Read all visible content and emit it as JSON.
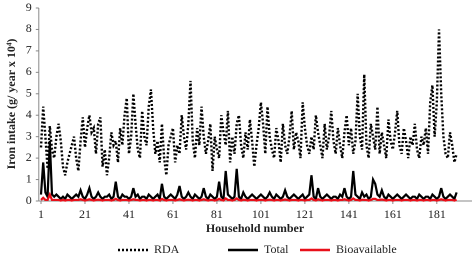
{
  "chart_data": {
    "type": "line",
    "ylabel": "Iron intake (g/ year x 10⁴)",
    "xlabel": "Household number",
    "xlim": [
      0,
      197
    ],
    "ylim": [
      0,
      9
    ],
    "yticks": [
      0,
      1,
      2,
      3,
      4,
      5,
      6,
      7,
      8,
      9
    ],
    "xticks": [
      1,
      21,
      41,
      61,
      81,
      101,
      121,
      141,
      161,
      181
    ],
    "legend": "bottom",
    "x": [
      1,
      2,
      3,
      4,
      5,
      6,
      7,
      8,
      9,
      10,
      11,
      12,
      13,
      14,
      15,
      16,
      17,
      18,
      19,
      20,
      21,
      22,
      23,
      24,
      25,
      26,
      27,
      28,
      29,
      30,
      31,
      32,
      33,
      34,
      35,
      36,
      37,
      38,
      39,
      40,
      41,
      42,
      43,
      44,
      45,
      46,
      47,
      48,
      49,
      50,
      51,
      52,
      53,
      54,
      55,
      56,
      57,
      58,
      59,
      60,
      61,
      62,
      63,
      64,
      65,
      66,
      67,
      68,
      69,
      70,
      71,
      72,
      73,
      74,
      75,
      76,
      77,
      78,
      79,
      80,
      81,
      82,
      83,
      84,
      85,
      86,
      87,
      88,
      89,
      90,
      91,
      92,
      93,
      94,
      95,
      96,
      97,
      98,
      99,
      100,
      101,
      102,
      103,
      104,
      105,
      106,
      107,
      108,
      109,
      110,
      111,
      112,
      113,
      114,
      115,
      116,
      117,
      118,
      119,
      120,
      121,
      122,
      123,
      124,
      125,
      126,
      127,
      128,
      129,
      130,
      131,
      132,
      133,
      134,
      135,
      136,
      137,
      138,
      139,
      140,
      141,
      142,
      143,
      144,
      145,
      146,
      147,
      148,
      149,
      150,
      151,
      152,
      153,
      154,
      155,
      156,
      157,
      158,
      159,
      160,
      161,
      162,
      163,
      164,
      165,
      166,
      167,
      168,
      169,
      170,
      171,
      172,
      173,
      174,
      175,
      176,
      177,
      178,
      179,
      180,
      181,
      182,
      183,
      184,
      185,
      186,
      187,
      188,
      189,
      190
    ],
    "series": [
      {
        "name": "RDA",
        "color": "#000000",
        "dash": "dotted",
        "values": [
          2.5,
          4.4,
          3.0,
          1.5,
          3.5,
          2.4,
          2.0,
          3.0,
          3.6,
          2.8,
          1.6,
          1.2,
          1.8,
          2.2,
          2.6,
          3.0,
          2.0,
          1.4,
          2.8,
          3.9,
          2.5,
          3.4,
          4.0,
          3.2,
          3.4,
          2.2,
          3.6,
          3.9,
          1.6,
          2.4,
          1.2,
          2.0,
          3.2,
          2.6,
          2.8,
          1.8,
          3.4,
          2.6,
          4.0,
          4.8,
          2.2,
          3.0,
          5.0,
          3.6,
          2.4,
          2.0,
          4.2,
          3.0,
          2.6,
          4.4,
          5.2,
          3.4,
          2.2,
          2.8,
          1.8,
          3.6,
          2.0,
          1.2,
          2.6,
          3.0,
          3.4,
          1.8,
          2.6,
          2.2,
          4.0,
          3.0,
          2.4,
          3.6,
          5.6,
          2.8,
          2.0,
          3.4,
          2.6,
          4.4,
          3.0,
          2.2,
          2.8,
          3.6,
          1.4,
          3.0,
          2.4,
          2.0,
          4.0,
          3.2,
          2.6,
          4.2,
          1.8,
          3.0,
          2.2,
          3.6,
          4.0,
          2.6,
          2.0,
          3.2,
          2.4,
          3.8,
          2.8,
          1.6,
          2.6,
          3.4,
          4.6,
          3.6,
          2.2,
          4.4,
          3.0,
          2.4,
          2.0,
          3.4,
          2.8,
          1.8,
          3.6,
          2.6,
          2.2,
          3.0,
          4.2,
          2.4,
          3.2,
          2.8,
          2.0,
          4.6,
          3.4,
          2.6,
          2.2,
          3.0,
          2.4,
          4.0,
          3.2,
          2.6,
          2.0,
          3.6,
          2.4,
          3.0,
          4.2,
          2.8,
          2.2,
          3.4,
          2.6,
          2.0,
          3.2,
          4.0,
          2.6,
          3.4,
          2.2,
          2.8,
          5.0,
          3.0,
          2.4,
          5.9,
          2.6,
          2.0,
          3.6,
          3.0,
          2.4,
          4.4,
          2.2,
          3.2,
          2.6,
          2.0,
          3.8,
          2.8,
          2.4,
          3.2,
          4.2,
          2.6,
          2.2,
          3.4,
          2.8,
          2.0,
          3.0,
          2.6,
          3.6,
          2.4,
          2.0,
          3.0,
          2.6,
          3.4,
          2.2,
          4.6,
          5.4,
          3.0,
          4.6,
          8.0,
          5.0,
          3.0,
          2.2,
          2.0,
          3.2,
          2.6,
          1.8,
          2.2
        ]
      },
      {
        "name": "Total",
        "color": "#000000",
        "dash": "solid",
        "values": [
          0.3,
          1.8,
          0.4,
          0.2,
          2.8,
          0.3,
          0.2,
          0.3,
          0.2,
          0.1,
          0.2,
          0.1,
          0.3,
          0.2,
          0.1,
          0.2,
          0.3,
          0.2,
          0.5,
          0.2,
          0.1,
          0.3,
          0.6,
          0.2,
          0.1,
          0.2,
          0.4,
          0.2,
          0.1,
          0.2,
          0.2,
          0.3,
          0.1,
          0.2,
          0.9,
          0.2,
          0.1,
          0.3,
          0.2,
          0.2,
          0.1,
          0.2,
          0.6,
          0.2,
          0.3,
          0.1,
          0.2,
          0.2,
          0.1,
          0.3,
          0.2,
          0.1,
          0.2,
          0.3,
          0.1,
          0.8,
          0.2,
          0.1,
          0.2,
          0.3,
          0.2,
          0.1,
          0.3,
          0.7,
          0.2,
          0.1,
          0.2,
          0.4,
          0.2,
          0.1,
          0.3,
          0.2,
          0.1,
          0.2,
          0.6,
          0.2,
          0.1,
          0.3,
          0.2,
          0.1,
          0.2,
          0.9,
          0.2,
          0.1,
          1.4,
          0.3,
          0.2,
          0.1,
          0.2,
          1.5,
          0.2,
          0.1,
          0.4,
          0.2,
          0.1,
          0.2,
          0.3,
          0.2,
          0.1,
          0.2,
          0.3,
          0.2,
          0.1,
          0.2,
          0.4,
          0.2,
          0.1,
          0.3,
          0.2,
          0.1,
          0.2,
          0.5,
          0.2,
          0.1,
          0.2,
          0.3,
          0.2,
          0.1,
          0.2,
          0.3,
          0.1,
          0.2,
          0.3,
          1.2,
          0.2,
          0.1,
          0.6,
          0.2,
          0.1,
          0.2,
          0.3,
          0.2,
          0.1,
          0.2,
          0.2,
          0.1,
          0.3,
          0.2,
          0.6,
          0.2,
          0.1,
          0.2,
          1.4,
          0.3,
          0.2,
          0.1,
          0.4,
          0.2,
          0.3,
          0.1,
          0.2,
          1.0,
          0.8,
          0.3,
          0.2,
          0.5,
          0.2,
          0.1,
          0.3,
          0.2,
          0.1,
          0.2,
          0.3,
          0.2,
          0.1,
          0.2,
          0.3,
          0.2,
          0.1,
          0.2,
          0.2,
          0.1,
          0.3,
          0.2,
          0.1,
          0.2,
          0.2,
          0.1,
          0.3,
          0.2,
          0.1,
          0.2,
          0.6,
          0.2,
          0.1,
          0.2,
          0.3,
          0.2,
          0.1,
          0.4
        ]
      },
      {
        "name": "Bioavailable",
        "color": "#e8101a",
        "dash": "solid",
        "values": [
          0.05,
          0.15,
          0.05,
          0.05,
          0.3,
          0.05,
          0.05,
          0.05,
          0.05,
          0.02,
          0.05,
          0.02,
          0.05,
          0.05,
          0.02,
          0.05,
          0.05,
          0.05,
          0.08,
          0.05,
          0.02,
          0.05,
          0.08,
          0.05,
          0.02,
          0.05,
          0.06,
          0.05,
          0.02,
          0.05,
          0.05,
          0.05,
          0.02,
          0.05,
          0.1,
          0.05,
          0.02,
          0.05,
          0.05,
          0.05,
          0.02,
          0.05,
          0.08,
          0.05,
          0.05,
          0.02,
          0.05,
          0.05,
          0.02,
          0.05,
          0.05,
          0.02,
          0.05,
          0.05,
          0.02,
          0.1,
          0.05,
          0.02,
          0.05,
          0.05,
          0.05,
          0.02,
          0.05,
          0.08,
          0.05,
          0.02,
          0.05,
          0.06,
          0.05,
          0.02,
          0.05,
          0.05,
          0.02,
          0.05,
          0.08,
          0.05,
          0.02,
          0.05,
          0.05,
          0.02,
          0.05,
          0.1,
          0.05,
          0.02,
          0.12,
          0.05,
          0.05,
          0.02,
          0.05,
          0.12,
          0.05,
          0.02,
          0.06,
          0.05,
          0.02,
          0.05,
          0.05,
          0.05,
          0.02,
          0.05,
          0.05,
          0.05,
          0.02,
          0.05,
          0.06,
          0.05,
          0.02,
          0.05,
          0.05,
          0.02,
          0.05,
          0.07,
          0.05,
          0.02,
          0.05,
          0.05,
          0.05,
          0.02,
          0.05,
          0.05,
          0.02,
          0.05,
          0.05,
          0.12,
          0.05,
          0.02,
          0.08,
          0.05,
          0.02,
          0.05,
          0.05,
          0.05,
          0.02,
          0.05,
          0.05,
          0.02,
          0.05,
          0.05,
          0.08,
          0.05,
          0.02,
          0.05,
          0.12,
          0.05,
          0.05,
          0.02,
          0.06,
          0.05,
          0.05,
          0.02,
          0.05,
          0.1,
          0.1,
          0.05,
          0.05,
          0.07,
          0.05,
          0.02,
          0.05,
          0.05,
          0.02,
          0.05,
          0.05,
          0.05,
          0.02,
          0.05,
          0.05,
          0.05,
          0.02,
          0.05,
          0.05,
          0.02,
          0.05,
          0.05,
          0.02,
          0.05,
          0.05,
          0.02,
          0.05,
          0.05,
          0.02,
          0.05,
          0.08,
          0.05,
          0.02,
          0.05,
          0.05,
          0.05,
          0.02,
          0.06
        ]
      }
    ]
  }
}
